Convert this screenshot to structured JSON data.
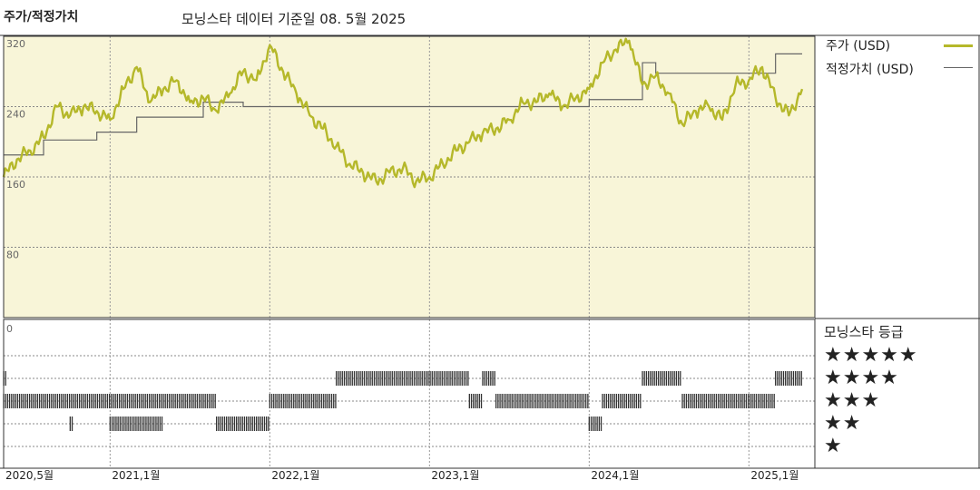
{
  "header": {
    "title": "주가/적정가치",
    "subtitle": "모닝스타 데이터 기준일 08. 5월 2025"
  },
  "legend": {
    "price_label": "주가 (USD)",
    "fair_label": "적정가치 (USD)"
  },
  "rating": {
    "title": "모닝스타 등급",
    "levels": [
      "★★★★★",
      "★★★★",
      "★★★",
      "★★",
      "★"
    ]
  },
  "colors": {
    "price": "#b5b82a",
    "fair": "#666666",
    "plot_bg": "#f8f5d8",
    "bars": "#333333"
  },
  "chart_data": {
    "type": "line",
    "y_ticks": [
      320,
      240,
      160,
      80
    ],
    "ylim": [
      0,
      320
    ],
    "rating_axis_label": "0",
    "x_ticks": [
      "2020,5월",
      "2021,1월",
      "2022,1월",
      "2023,1월",
      "2024,1월",
      "2025,1월"
    ],
    "x_range": [
      "2020-05",
      "2025-05"
    ],
    "series": [
      {
        "name": "주가 (USD)",
        "points": [
          [
            "2020-05",
            160
          ],
          [
            "2020-06",
            180
          ],
          [
            "2020-07",
            190
          ],
          [
            "2020-08",
            205
          ],
          [
            "2020-09",
            240
          ],
          [
            "2020-10",
            230
          ],
          [
            "2020-11",
            240
          ],
          [
            "2020-12",
            235
          ],
          [
            "2021-01",
            225
          ],
          [
            "2021-02",
            260
          ],
          [
            "2021-03",
            285
          ],
          [
            "2021-04",
            245
          ],
          [
            "2021-05",
            260
          ],
          [
            "2021-06",
            270
          ],
          [
            "2021-07",
            245
          ],
          [
            "2021-08",
            250
          ],
          [
            "2021-09",
            235
          ],
          [
            "2021-10",
            255
          ],
          [
            "2021-11",
            280
          ],
          [
            "2021-12",
            270
          ],
          [
            "2022-01",
            310
          ],
          [
            "2022-02",
            280
          ],
          [
            "2022-03",
            255
          ],
          [
            "2022-04",
            230
          ],
          [
            "2022-05",
            215
          ],
          [
            "2022-06",
            195
          ],
          [
            "2022-07",
            175
          ],
          [
            "2022-08",
            165
          ],
          [
            "2022-09",
            155
          ],
          [
            "2022-10",
            165
          ],
          [
            "2022-11",
            170
          ],
          [
            "2022-12",
            155
          ],
          [
            "2023-01",
            160
          ],
          [
            "2023-02",
            175
          ],
          [
            "2023-03",
            190
          ],
          [
            "2023-04",
            200
          ],
          [
            "2023-05",
            210
          ],
          [
            "2023-06",
            215
          ],
          [
            "2023-07",
            225
          ],
          [
            "2023-08",
            245
          ],
          [
            "2023-09",
            245
          ],
          [
            "2023-10",
            255
          ],
          [
            "2023-11",
            240
          ],
          [
            "2023-12",
            250
          ],
          [
            "2024-01",
            260
          ],
          [
            "2024-02",
            290
          ],
          [
            "2024-03",
            305
          ],
          [
            "2024-04",
            315
          ],
          [
            "2024-05",
            265
          ],
          [
            "2024-06",
            275
          ],
          [
            "2024-07",
            255
          ],
          [
            "2024-08",
            220
          ],
          [
            "2024-09",
            235
          ],
          [
            "2024-10",
            240
          ],
          [
            "2024-11",
            225
          ],
          [
            "2024-12",
            265
          ],
          [
            "2025-01",
            270
          ],
          [
            "2025-02",
            285
          ],
          [
            "2025-03",
            250
          ],
          [
            "2025-04",
            230
          ],
          [
            "2025-05",
            260
          ]
        ]
      },
      {
        "name": "적정가치 (USD)",
        "step": true,
        "points": [
          [
            "2020-05",
            185
          ],
          [
            "2020-08",
            202
          ],
          [
            "2020-12",
            211
          ],
          [
            "2021-03",
            228
          ],
          [
            "2021-08",
            245
          ],
          [
            "2021-11",
            240
          ],
          [
            "2024-01",
            248
          ],
          [
            "2024-05",
            290
          ],
          [
            "2024-06",
            278
          ],
          [
            "2025-03",
            300
          ],
          [
            "2025-05",
            300
          ]
        ]
      }
    ],
    "ratings_series": {
      "name": "모닝스타 등급",
      "segments": [
        [
          "2020-05",
          "2020-05",
          4
        ],
        [
          "2020-05",
          "2021-09",
          3
        ],
        [
          "2020-10",
          "2020-10",
          2
        ],
        [
          "2021-01",
          "2021-05",
          2
        ],
        [
          "2021-09",
          "2022-01",
          2
        ],
        [
          "2022-01",
          "2022-06",
          3
        ],
        [
          "2022-06",
          "2023-04",
          4
        ],
        [
          "2023-04",
          "2023-05",
          3
        ],
        [
          "2023-05",
          "2023-06",
          4
        ],
        [
          "2023-06",
          "2024-01",
          3
        ],
        [
          "2024-01",
          "2024-02",
          2
        ],
        [
          "2024-02",
          "2024-05",
          3
        ],
        [
          "2024-05",
          "2024-08",
          4
        ],
        [
          "2024-08",
          "2025-03",
          3
        ],
        [
          "2025-03",
          "2025-05",
          4
        ]
      ]
    }
  }
}
